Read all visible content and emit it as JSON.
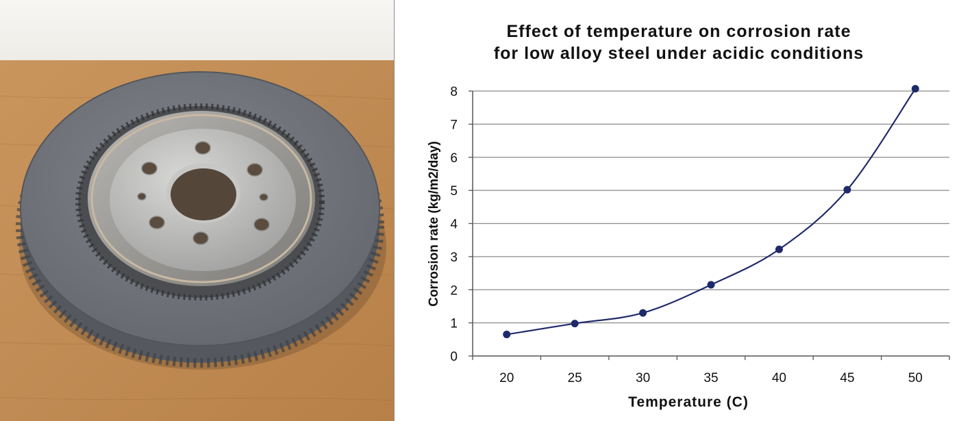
{
  "photo": {
    "subject": "brake-disc-rotor-photo"
  },
  "chart_data": {
    "type": "line",
    "title": "Effect of temperature on corrosion rate\nfor low alloy steel under acidic conditions",
    "xlabel": "Temperature (C)",
    "ylabel": "Corrosion rate (kg/m2/day)",
    "x": [
      20,
      25,
      30,
      35,
      40,
      45,
      50
    ],
    "xlim": [
      17.5,
      52.5
    ],
    "ylim": [
      0,
      8
    ],
    "yticks": [
      0,
      1,
      2,
      3,
      4,
      5,
      6,
      7,
      8
    ],
    "grid": true,
    "legend": "none",
    "series": [
      {
        "values": [
          0.65,
          0.98,
          1.3,
          2.15,
          3.22,
          5.02,
          8.07
        ],
        "color": "#1f2a6b"
      }
    ]
  }
}
